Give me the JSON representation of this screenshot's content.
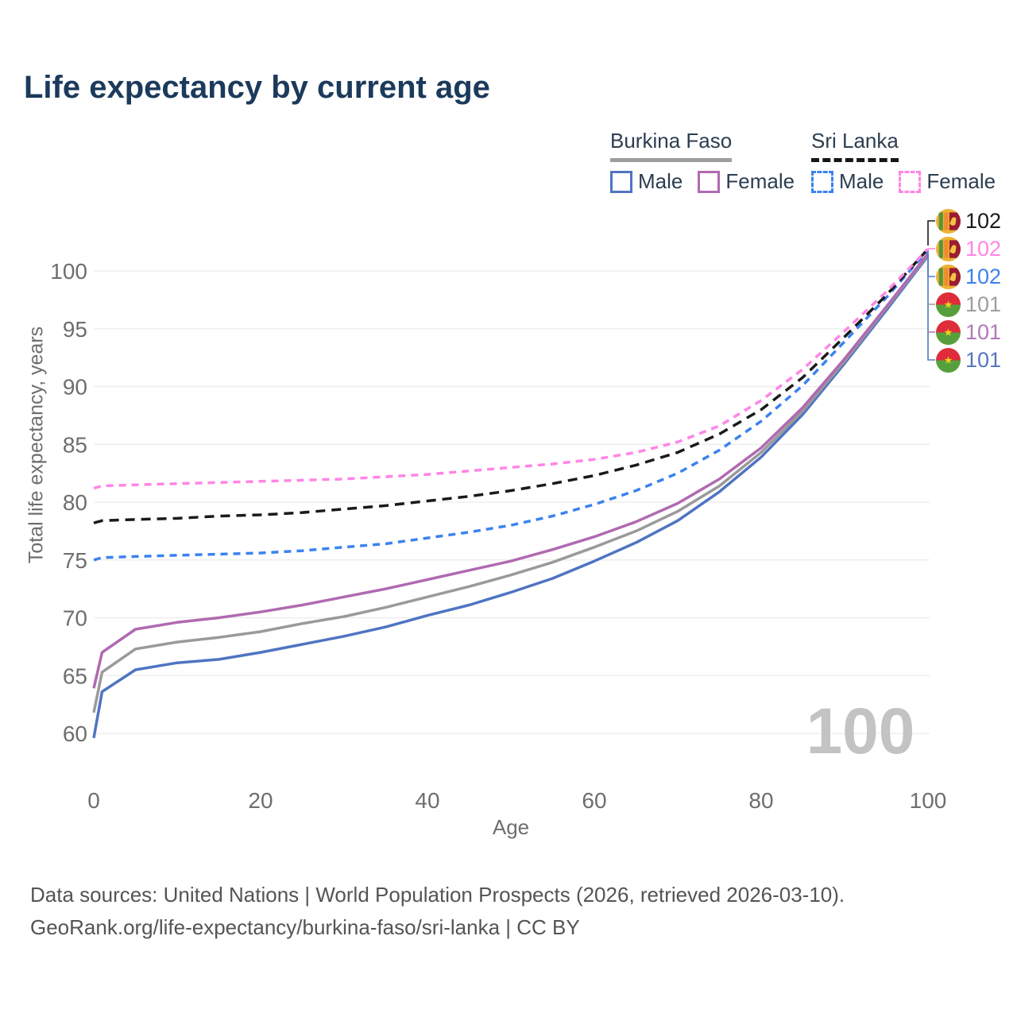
{
  "title": "Life expectancy by current age",
  "legend": {
    "burkina_faso": {
      "country": "Burkina Faso",
      "line_style": "solid",
      "line_color": "#9a9a9a",
      "male_label": "Male",
      "male_color": "#4f74c2",
      "female_label": "Female",
      "female_color": "#b06ab0"
    },
    "sri_lanka": {
      "country": "Sri Lanka",
      "line_style": "dashed",
      "line_color": "#1a1a1a",
      "male_label": "Male",
      "male_color": "#3b82f0",
      "female_label": "Female",
      "female_color": "#ff85e6"
    }
  },
  "watermark": "100",
  "end_labels": [
    {
      "flag": "sri-lanka",
      "value": "102",
      "color": "#1a1a1a"
    },
    {
      "flag": "sri-lanka",
      "value": "102",
      "color": "#ff85e6"
    },
    {
      "flag": "sri-lanka",
      "value": "102",
      "color": "#3b82f0"
    },
    {
      "flag": "burkina-faso",
      "value": "101",
      "color": "#9e9e9e"
    },
    {
      "flag": "burkina-faso",
      "value": "101",
      "color": "#b07ab8"
    },
    {
      "flag": "burkina-faso",
      "value": "101",
      "color": "#5577c0"
    }
  ],
  "footer": {
    "line1": "Data sources: United Nations | World Population Prospects (2026, retrieved 2026-03-10).",
    "line2": "GeoRank.org/life-expectancy/burkina-faso/sri-lanka | CC BY"
  },
  "chart_data": {
    "type": "line",
    "title": "Life expectancy by current age",
    "xlabel": "Age",
    "ylabel": "Total life expectancy, years",
    "xlim": [
      0,
      100
    ],
    "ylim": [
      58.5,
      103
    ],
    "x_ticks": [
      0,
      20,
      40,
      60,
      80,
      100
    ],
    "y_ticks": [
      60,
      65,
      70,
      75,
      80,
      85,
      90,
      95,
      100
    ],
    "grid": "horizontal",
    "legend_position": "top-right",
    "ages": [
      0,
      1,
      5,
      10,
      15,
      20,
      25,
      30,
      35,
      40,
      45,
      50,
      55,
      60,
      65,
      70,
      75,
      80,
      85,
      90,
      95,
      100
    ],
    "series": [
      {
        "name": "Burkina Faso Male",
        "country": "Burkina Faso",
        "sex": "Male",
        "style": "solid",
        "color": "#4f74c2",
        "end_value": 101,
        "values": [
          59.6,
          63.6,
          65.5,
          66.1,
          66.4,
          67.0,
          67.7,
          68.4,
          69.2,
          70.2,
          71.1,
          72.2,
          73.4,
          74.9,
          76.5,
          78.4,
          80.9,
          83.9,
          87.6,
          92.0,
          96.6,
          101.3
        ]
      },
      {
        "name": "Burkina Faso Both sexes",
        "country": "Burkina Faso",
        "sex": "Both",
        "style": "solid",
        "color": "#9a9a9a",
        "end_value": 101,
        "values": [
          61.8,
          65.3,
          67.3,
          67.9,
          68.3,
          68.8,
          69.5,
          70.1,
          70.9,
          71.8,
          72.7,
          73.7,
          74.8,
          76.1,
          77.5,
          79.2,
          81.4,
          84.3,
          87.9,
          92.2,
          96.8,
          101.4
        ]
      },
      {
        "name": "Burkina Faso Female",
        "country": "Burkina Faso",
        "sex": "Female",
        "style": "solid",
        "color": "#b06ab0",
        "end_value": 101,
        "values": [
          63.9,
          67.0,
          69.0,
          69.6,
          70.0,
          70.5,
          71.1,
          71.8,
          72.5,
          73.3,
          74.1,
          74.9,
          75.9,
          77.0,
          78.3,
          79.9,
          82.0,
          84.7,
          88.2,
          92.4,
          96.9,
          101.5
        ]
      },
      {
        "name": "Sri Lanka Male",
        "country": "Sri Lanka",
        "sex": "Male",
        "style": "dashed",
        "color": "#3b82f0",
        "end_value": 102,
        "values": [
          75.0,
          75.2,
          75.3,
          75.4,
          75.5,
          75.6,
          75.8,
          76.1,
          76.4,
          76.9,
          77.4,
          78.0,
          78.8,
          79.8,
          81.0,
          82.5,
          84.5,
          87.0,
          90.1,
          93.9,
          97.7,
          101.8
        ]
      },
      {
        "name": "Sri Lanka Both sexes",
        "country": "Sri Lanka",
        "sex": "Both",
        "style": "dashed",
        "color": "#1a1a1a",
        "end_value": 102,
        "values": [
          78.2,
          78.4,
          78.5,
          78.6,
          78.8,
          78.9,
          79.1,
          79.4,
          79.7,
          80.1,
          80.5,
          81.0,
          81.6,
          82.3,
          83.2,
          84.3,
          85.9,
          88.0,
          90.8,
          94.3,
          97.9,
          101.9
        ]
      },
      {
        "name": "Sri Lanka Female",
        "country": "Sri Lanka",
        "sex": "Female",
        "style": "dashed",
        "color": "#ff85e6",
        "end_value": 102,
        "values": [
          81.2,
          81.4,
          81.5,
          81.6,
          81.7,
          81.8,
          81.9,
          82.0,
          82.2,
          82.4,
          82.7,
          83.0,
          83.3,
          83.7,
          84.3,
          85.2,
          86.6,
          88.8,
          91.5,
          94.8,
          98.2,
          101.9
        ]
      }
    ]
  }
}
